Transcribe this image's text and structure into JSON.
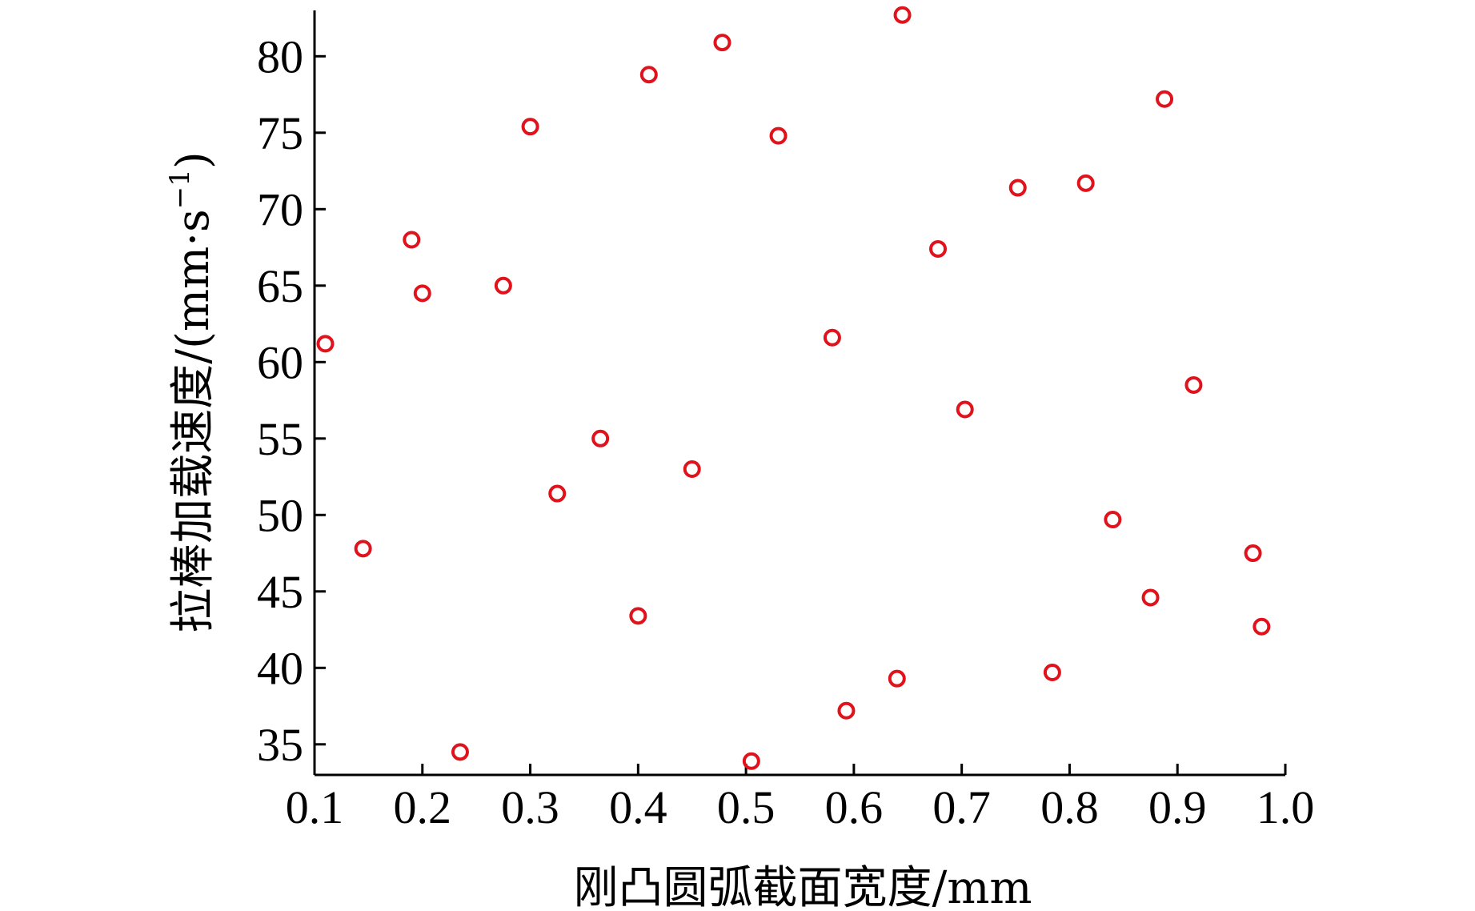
{
  "chart_data": {
    "type": "scatter",
    "xlabel": "刚凸圆弧截面宽度/mm",
    "ylabel": "拉棒加载速度/(mm·s",
    "ylabel_sup": "−1",
    "ylabel_end": ")",
    "xlim": [
      0.1,
      1.0
    ],
    "ylim": [
      33,
      83
    ],
    "x_ticks": [
      "0.1",
      "0.2",
      "0.3",
      "0.4",
      "0.5",
      "0.6",
      "0.7",
      "0.8",
      "0.9",
      "1.0"
    ],
    "y_ticks": [
      "35",
      "40",
      "45",
      "50",
      "55",
      "60",
      "65",
      "70",
      "75",
      "80"
    ],
    "grid": false,
    "marker": "open-circle",
    "marker_color": "#e0121c",
    "series": [
      {
        "points": [
          [
            0.11,
            61.2
          ],
          [
            0.145,
            47.8
          ],
          [
            0.19,
            68.0
          ],
          [
            0.2,
            64.5
          ],
          [
            0.235,
            34.5
          ],
          [
            0.275,
            65.0
          ],
          [
            0.3,
            75.4
          ],
          [
            0.325,
            51.4
          ],
          [
            0.365,
            55.0
          ],
          [
            0.4,
            43.4
          ],
          [
            0.41,
            78.8
          ],
          [
            0.45,
            53.0
          ],
          [
            0.478,
            80.9
          ],
          [
            0.505,
            33.9
          ],
          [
            0.53,
            74.8
          ],
          [
            0.58,
            61.6
          ],
          [
            0.593,
            37.2
          ],
          [
            0.64,
            39.3
          ],
          [
            0.645,
            82.7
          ],
          [
            0.678,
            67.4
          ],
          [
            0.703,
            56.9
          ],
          [
            0.752,
            71.4
          ],
          [
            0.784,
            39.7
          ],
          [
            0.815,
            71.7
          ],
          [
            0.84,
            49.7
          ],
          [
            0.875,
            44.6
          ],
          [
            0.888,
            77.2
          ],
          [
            0.915,
            58.5
          ],
          [
            0.97,
            47.5
          ],
          [
            0.978,
            42.7
          ]
        ]
      }
    ]
  }
}
